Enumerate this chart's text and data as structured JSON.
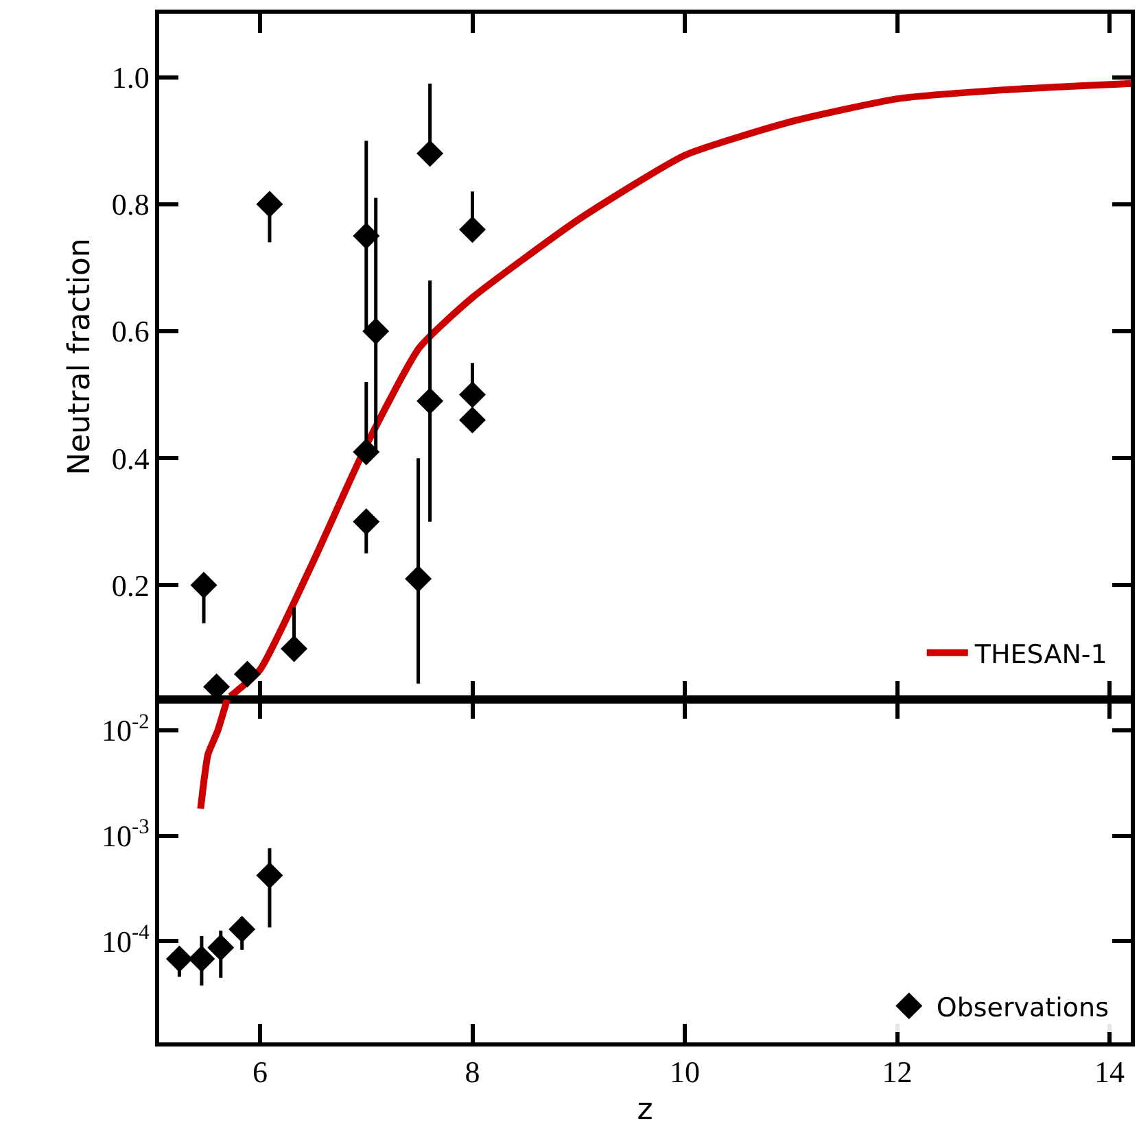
{
  "chart_data": [
    {
      "type": "scatter",
      "ylabel": "Neutral fraction",
      "xlim": [
        5.05,
        14.2
      ],
      "xticks": [
        6,
        8,
        10,
        12,
        14
      ],
      "ylim": [
        0.02,
        1.1
      ],
      "yticks": [
        0.2,
        0.4,
        0.6,
        {
          "value": 1,
          "label": "1.0"
        },
        0.8
      ],
      "tick_labels": "y",
      "legend": "bottom right",
      "series": [
        {
          "type": "line",
          "name": "THESAN-1",
          "color": "#cc0000",
          "x": [
            5.72,
            6.0,
            6.5,
            7.0,
            7.5,
            8.0,
            9.0,
            10.0,
            11.0,
            12.0,
            13.0,
            14.2
          ],
          "values": [
            0.025,
            0.067,
            0.237,
            0.42,
            0.574,
            0.653,
            0.776,
            0.877,
            0.93,
            0.966,
            0.98,
            0.99
          ]
        },
        {
          "marker": "diamond",
          "color": "#000000",
          "x": [
            5.47,
            5.59,
            5.88,
            6.09,
            6.32,
            7.0,
            7.09,
            7.0,
            7.0,
            7.49,
            7.6,
            7.6,
            8.0,
            8.0,
            8.0
          ],
          "values": [
            0.2,
            0.04,
            0.06,
            0.8,
            0.1,
            0.75,
            0.6,
            0.41,
            0.3,
            0.21,
            0.88,
            0.49,
            0.76,
            0.5,
            0.46
          ],
          "errors": [
            [
              0.14,
              0.2
            ],
            null,
            null,
            [
              0.74,
              0.8
            ],
            [
              0.1,
              0.165
            ],
            [
              0.6,
              0.9
            ],
            [
              0.41,
              0.81
            ],
            [
              0.41,
              0.52
            ],
            [
              0.25,
              0.3
            ],
            [
              0.045,
              0.4
            ],
            [
              0.88,
              0.99
            ],
            [
              0.3,
              0.68
            ],
            [
              0.76,
              0.82
            ],
            [
              0.5,
              0.55
            ],
            null
          ]
        }
      ]
    },
    {
      "type": "scatter",
      "xlabel": "z",
      "xlim": [
        5.05,
        14.2
      ],
      "xticks": [
        6,
        8,
        10,
        12,
        14
      ],
      "log": "y",
      "ylim": [
        1.1e-05,
        0.0195
      ],
      "yticks": [
        {
          "value": 0.0001,
          "label": "10$^{-4}$"
        },
        {
          "value": 0.001,
          "label": "10$^{-3}$"
        },
        {
          "value": 0.01,
          "label": "10$^{-2}$"
        }
      ],
      "legend": "bottom right",
      "series": [
        {
          "type": "line",
          "color": "#cc0000",
          "x": [
            5.44,
            5.51,
            5.6,
            5.69
          ],
          "values": [
            0.0018,
            0.0059,
            0.0098,
            0.0195
          ]
        },
        {
          "name": "Observations",
          "marker": "diamond",
          "color": "#000000",
          "x": [
            5.24,
            5.45,
            5.63,
            5.83,
            6.09
          ],
          "values": [
            6.8e-05,
            6.8e-05,
            8.7e-05,
            0.00013,
            0.00042
          ],
          "errors": [
            [
              4.6e-05,
              8.3e-05
            ],
            [
              3.8e-05,
              0.000112
            ],
            [
              4.5e-05,
              0.000126
            ],
            [
              8.3e-05,
              0.00017
            ],
            [
              0.000135,
              0.00076
            ]
          ]
        }
      ]
    }
  ]
}
